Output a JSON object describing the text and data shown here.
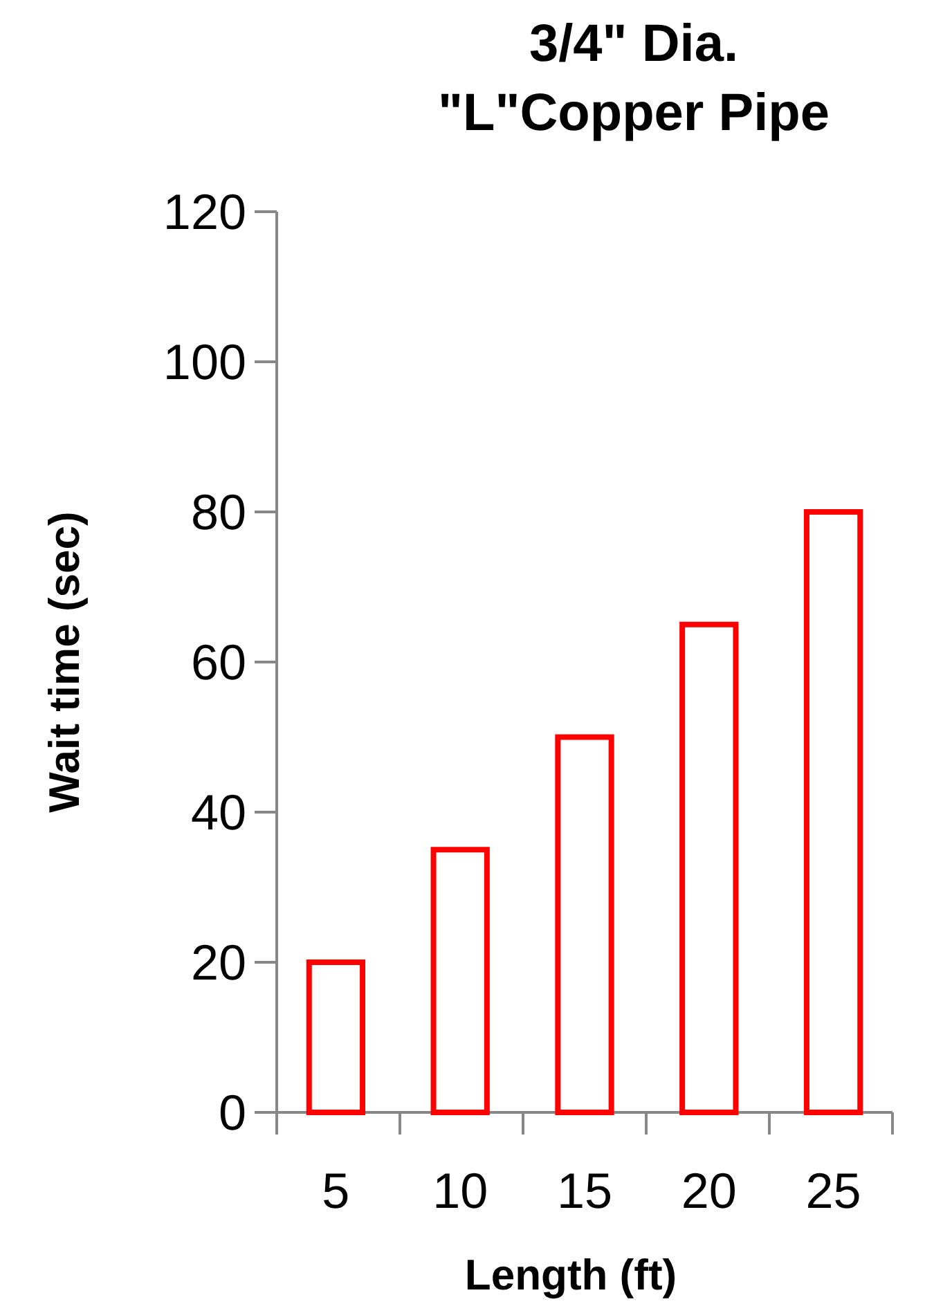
{
  "chart_data": {
    "type": "bar",
    "title": "3/4\" Dia.\n\"L\"Copper Pipe",
    "xlabel": "Length (ft)",
    "ylabel": "Wait time (sec)",
    "categories": [
      "5",
      "10",
      "15",
      "20",
      "25"
    ],
    "series": [
      {
        "color": "#ff0000",
        "values": [
          20,
          35,
          50,
          65,
          80
        ]
      }
    ],
    "ylim": [
      0,
      120
    ],
    "yticks": [
      0,
      20,
      40,
      60,
      80,
      100,
      120
    ],
    "grid": false
  }
}
